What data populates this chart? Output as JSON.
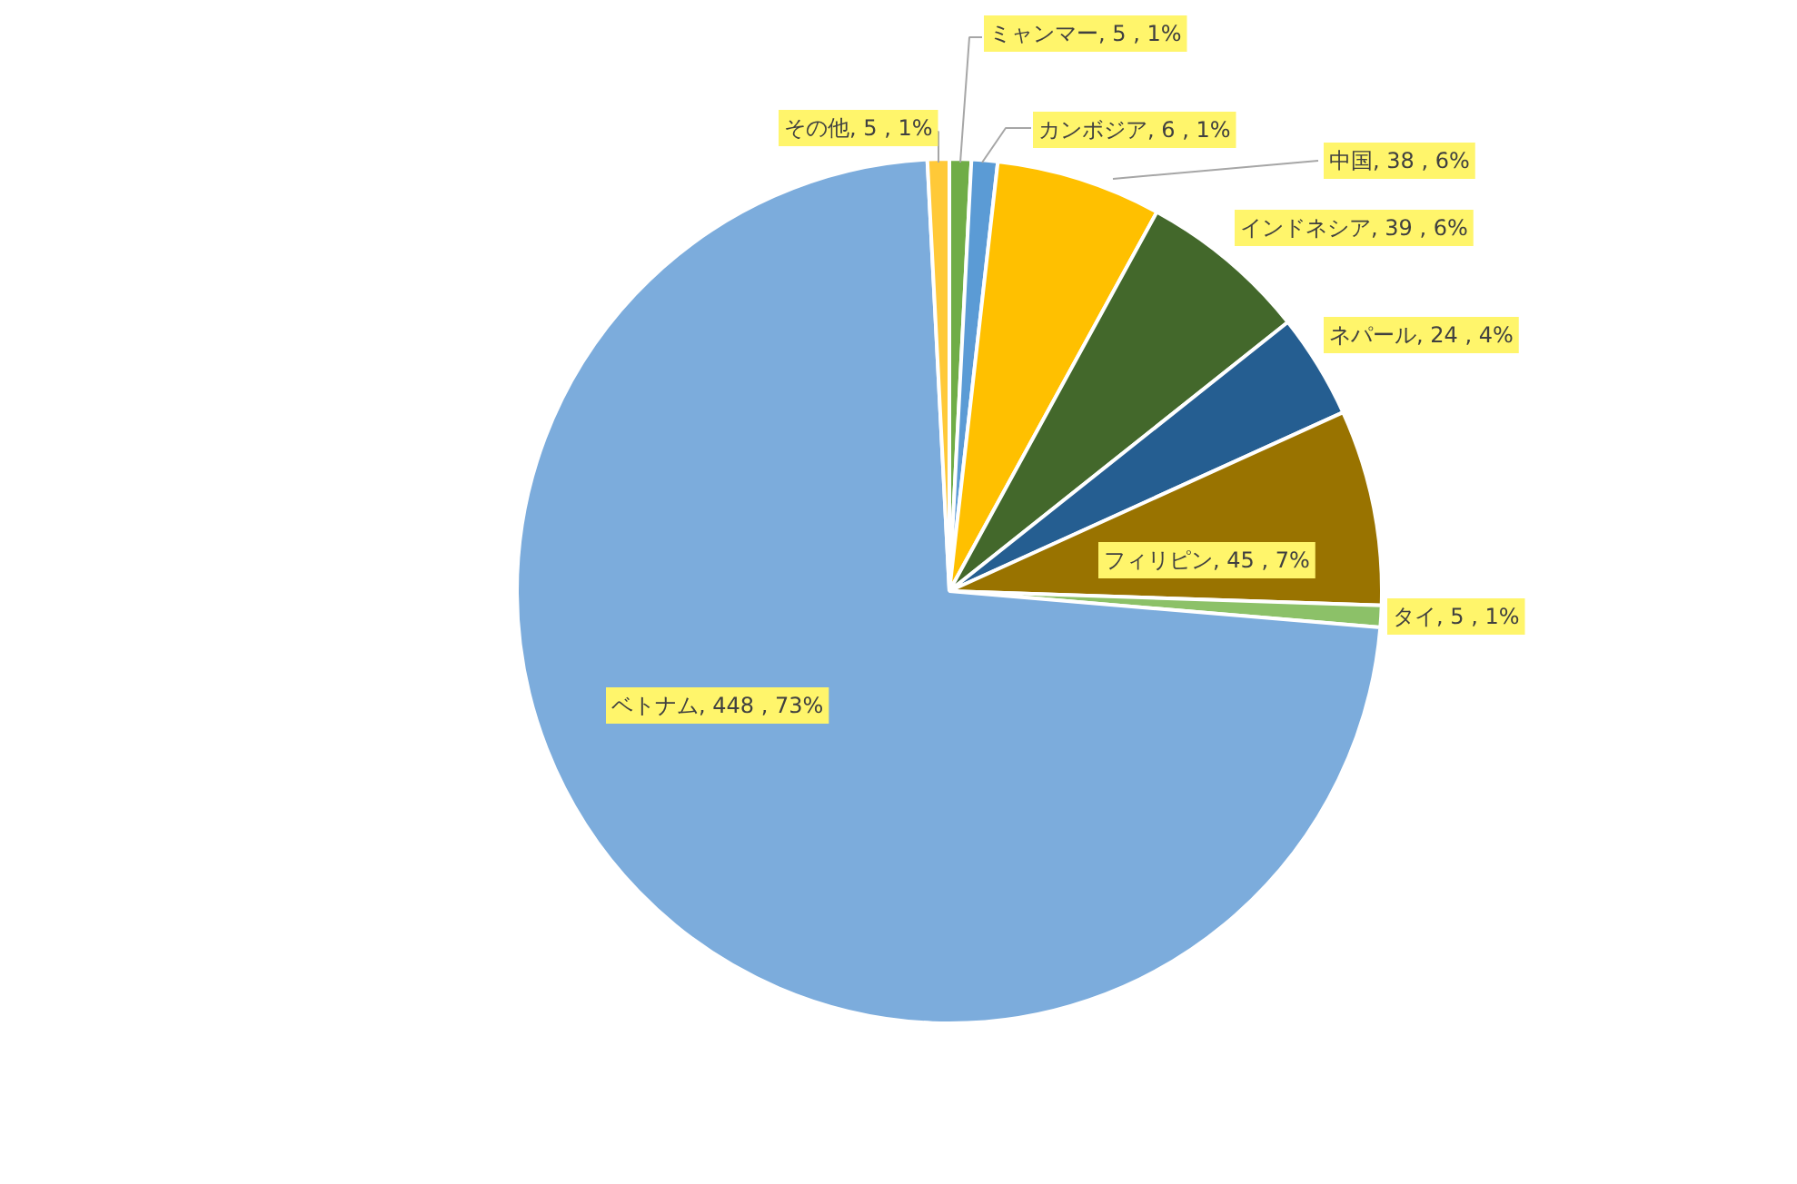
{
  "chart_data": {
    "type": "pie",
    "categories": [
      "ミャンマー",
      "カンボジア",
      "中国",
      "インドネシア",
      "ネパール",
      "フィリピン",
      "タイ",
      "ベトナム",
      "その他"
    ],
    "values": [
      5,
      6,
      38,
      39,
      24,
      45,
      5,
      448,
      5
    ],
    "colors": [
      "#70ad47",
      "#5b9bd5",
      "#ffc000",
      "#43682b",
      "#255e91",
      "#997300",
      "#8cc168",
      "#7cacdc",
      "#ffc938"
    ],
    "value_labels": [
      "5 , 1%",
      "6 , 1%",
      "38 , 6%",
      "39 , 6%",
      "24 , 4%",
      "45 , 7%",
      "5 , 1%",
      "448 , 73%",
      "5 , 1%"
    ]
  }
}
